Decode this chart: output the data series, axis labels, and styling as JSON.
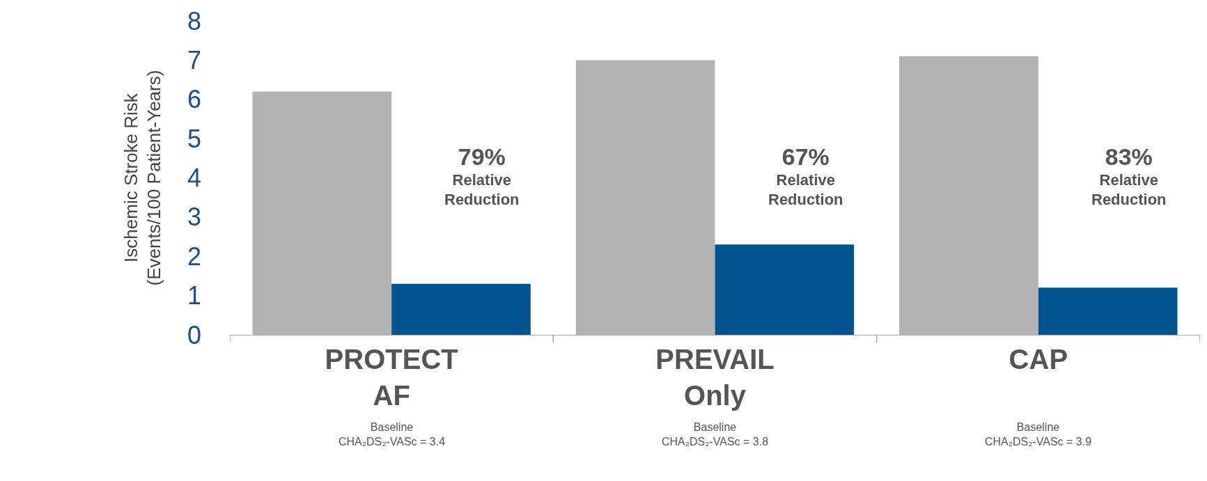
{
  "chart_data": {
    "type": "bar",
    "ylabel": "Ischemic Stroke Risk\n(Events/100 Patient-Years)",
    "categories": [
      "PROTECT\nAF",
      "PREVAIL\nOnly",
      "CAP"
    ],
    "series": [
      {
        "color": "#b3b3b3",
        "values": [
          6.2,
          7.0,
          7.1
        ]
      },
      {
        "color": "#00548f",
        "values": [
          1.3,
          2.3,
          1.2
        ]
      }
    ],
    "ylim": [
      0,
      8
    ],
    "yticks": [
      0,
      1,
      2,
      3,
      4,
      5,
      6,
      7,
      8
    ],
    "annotations": [
      {
        "text": "79%\nRelative\nReduction",
        "x": "PROTECT\nAF",
        "y": 3.2
      },
      {
        "text": "67%\nRelative\nReduction",
        "x": "PREVAIL\nOnly",
        "y": 3.2
      },
      {
        "text": "83%\nRelative\nReduction",
        "x": "CAP",
        "y": 3.2
      },
      "Baseline\nCHA₂DS₂-VASc = 3.4",
      "Baseline\nCHA₂DS₂-VASc = 3.8",
      "Baseline\nCHA₂DS₂-VASc = 3.9"
    ]
  }
}
